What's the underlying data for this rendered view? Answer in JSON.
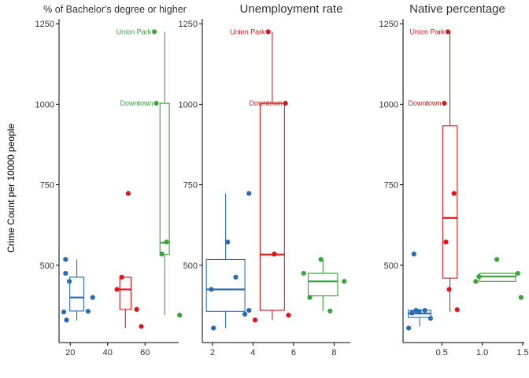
{
  "ylabel": "Crime Count per 10000 people",
  "colors": {
    "blue": "#2b6cb0",
    "red": "#d7191c",
    "green": "#3aa23a",
    "axis": "#000000",
    "text": "#333333"
  },
  "chart_data": [
    {
      "type": "box",
      "title": "% of Bachelor's degree or higher",
      "xlim": [
        14,
        78
      ],
      "ylim": [
        260,
        1265
      ],
      "xticks": [
        20,
        40,
        60
      ],
      "yticks": [
        500,
        750,
        1000,
        1250
      ],
      "boxes": [
        {
          "color": "blue",
          "x": 23.5,
          "width": 7.5,
          "q1": 358,
          "median": 400,
          "q3": 463,
          "whisker_low": 328,
          "whisker_high": 518
        },
        {
          "color": "red",
          "x": 49.5,
          "width": 6,
          "q1": 363,
          "median": 425,
          "q3": 463,
          "whisker_low": 305,
          "whisker_high": 463
        },
        {
          "color": "green",
          "x": 70.5,
          "width": 5,
          "q1": 533,
          "median": 570,
          "q3": 1003,
          "whisker_low": 345,
          "whisker_high": 1225
        }
      ],
      "points": [
        {
          "color": "blue",
          "x": 16.5,
          "y": 355
        },
        {
          "color": "blue",
          "x": 17.5,
          "y": 518
        },
        {
          "color": "blue",
          "x": 17.5,
          "y": 475
        },
        {
          "color": "blue",
          "x": 18,
          "y": 330
        },
        {
          "color": "blue",
          "x": 19.5,
          "y": 450
        },
        {
          "color": "blue",
          "x": 29.5,
          "y": 357
        },
        {
          "color": "blue",
          "x": 32,
          "y": 400
        },
        {
          "color": "red",
          "x": 45,
          "y": 425
        },
        {
          "color": "red",
          "x": 47.5,
          "y": 463
        },
        {
          "color": "red",
          "x": 51,
          "y": 723
        },
        {
          "color": "red",
          "x": 55.5,
          "y": 363
        },
        {
          "color": "red",
          "x": 58,
          "y": 310
        },
        {
          "color": "green",
          "x": 65,
          "y": 1225
        },
        {
          "color": "green",
          "x": 66,
          "y": 1003
        },
        {
          "color": "green",
          "x": 69,
          "y": 535
        },
        {
          "color": "green",
          "x": 71.5,
          "y": 572
        },
        {
          "color": "green",
          "x": 78.5,
          "y": 345
        }
      ],
      "annotations": [
        {
          "text": "Union Park",
          "color": "green",
          "x": 65,
          "y": 1225
        },
        {
          "text": "Downtown",
          "color": "green",
          "x": 66,
          "y": 1003
        }
      ]
    },
    {
      "type": "box",
      "title": "Unemployment rate",
      "xlim": [
        1.5,
        8.8
      ],
      "ylim": [
        260,
        1265
      ],
      "xticks": [
        2,
        4,
        6,
        8
      ],
      "yticks": [
        500,
        750,
        1000,
        1250
      ],
      "boxes": [
        {
          "color": "blue",
          "x": 2.65,
          "width": 1.9,
          "q1": 357,
          "median": 425,
          "q3": 518,
          "whisker_low": 305,
          "whisker_high": 723
        },
        {
          "color": "red",
          "x": 4.95,
          "width": 1.2,
          "q1": 360,
          "median": 533,
          "q3": 1003,
          "whisker_low": 330,
          "whisker_high": 1225
        },
        {
          "color": "green",
          "x": 7.45,
          "width": 1.45,
          "q1": 405,
          "median": 450,
          "q3": 475,
          "whisker_low": 358,
          "whisker_high": 518
        }
      ],
      "points": [
        {
          "color": "blue",
          "x": 1.95,
          "y": 425
        },
        {
          "color": "blue",
          "x": 2.05,
          "y": 305
        },
        {
          "color": "blue",
          "x": 2.75,
          "y": 572
        },
        {
          "color": "blue",
          "x": 3.15,
          "y": 463
        },
        {
          "color": "blue",
          "x": 3.6,
          "y": 348
        },
        {
          "color": "blue",
          "x": 3.8,
          "y": 723
        },
        {
          "color": "blue",
          "x": 3.8,
          "y": 360
        },
        {
          "color": "red",
          "x": 4.1,
          "y": 330
        },
        {
          "color": "red",
          "x": 4.75,
          "y": 1225
        },
        {
          "color": "red",
          "x": 5.05,
          "y": 535
        },
        {
          "color": "red",
          "x": 5.6,
          "y": 1003
        },
        {
          "color": "red",
          "x": 5.75,
          "y": 345
        },
        {
          "color": "green",
          "x": 6.5,
          "y": 475
        },
        {
          "color": "green",
          "x": 6.8,
          "y": 400
        },
        {
          "color": "green",
          "x": 7.35,
          "y": 518
        },
        {
          "color": "green",
          "x": 7.8,
          "y": 358
        },
        {
          "color": "green",
          "x": 8.5,
          "y": 450
        }
      ],
      "annotations": [
        {
          "text": "Union Park",
          "color": "red",
          "x": 4.75,
          "y": 1225
        },
        {
          "text": "Downtown",
          "color": "red",
          "x": 5.6,
          "y": 1003
        }
      ]
    },
    {
      "type": "box",
      "title": "Native percentage",
      "xlim": [
        0.02,
        1.52
      ],
      "ylim": [
        260,
        1265
      ],
      "xticks": [
        0.5,
        1.0,
        1.5
      ],
      "xtick_labels": [
        "0.5",
        "1.0",
        "1.5"
      ],
      "yticks": [
        500,
        750,
        1000,
        1250
      ],
      "boxes": [
        {
          "color": "blue",
          "x": 0.225,
          "width": 0.28,
          "q1": 338,
          "median": 350,
          "q3": 360,
          "whisker_low": 310,
          "whisker_high": 360
        },
        {
          "color": "red",
          "x": 0.6,
          "width": 0.18,
          "q1": 460,
          "median": 647,
          "q3": 933,
          "whisker_low": 355,
          "whisker_high": 1225
        },
        {
          "color": "green",
          "x": 1.19,
          "width": 0.45,
          "q1": 450,
          "median": 465,
          "q3": 475,
          "whisker_low": 450,
          "whisker_high": 475
        }
      ],
      "points": [
        {
          "color": "blue",
          "x": 0.09,
          "y": 305
        },
        {
          "color": "blue",
          "x": 0.13,
          "y": 352
        },
        {
          "color": "blue",
          "x": 0.155,
          "y": 535
        },
        {
          "color": "blue",
          "x": 0.18,
          "y": 360
        },
        {
          "color": "blue",
          "x": 0.22,
          "y": 357
        },
        {
          "color": "blue",
          "x": 0.29,
          "y": 360
        },
        {
          "color": "blue",
          "x": 0.36,
          "y": 335
        },
        {
          "color": "red",
          "x": 0.53,
          "y": 1003
        },
        {
          "color": "red",
          "x": 0.55,
          "y": 572
        },
        {
          "color": "red",
          "x": 0.575,
          "y": 1225
        },
        {
          "color": "red",
          "x": 0.59,
          "y": 425
        },
        {
          "color": "red",
          "x": 0.65,
          "y": 723
        },
        {
          "color": "red",
          "x": 0.69,
          "y": 362
        },
        {
          "color": "green",
          "x": 0.92,
          "y": 450
        },
        {
          "color": "green",
          "x": 0.96,
          "y": 465
        },
        {
          "color": "green",
          "x": 1.18,
          "y": 518
        },
        {
          "color": "green",
          "x": 1.44,
          "y": 475
        },
        {
          "color": "green",
          "x": 1.48,
          "y": 400
        }
      ],
      "annotations": [
        {
          "text": "Union Park",
          "color": "red",
          "x": 0.575,
          "y": 1225
        },
        {
          "text": "Downtown",
          "color": "red",
          "x": 0.53,
          "y": 1003
        }
      ]
    }
  ]
}
